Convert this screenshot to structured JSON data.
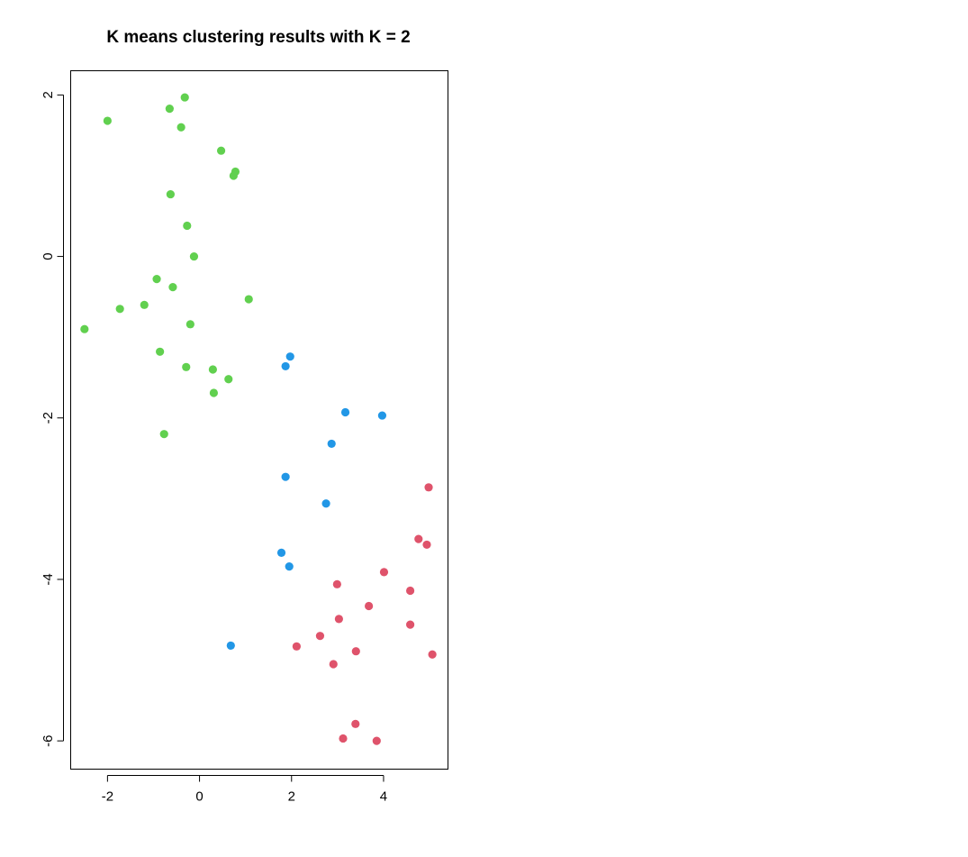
{
  "chart_data": {
    "type": "scatter",
    "title": "K means clustering results with K = 2",
    "xlabel": "",
    "ylabel": "",
    "xlim": [
      -2.8,
      5.4
    ],
    "ylim": [
      -6.35,
      2.3
    ],
    "x_ticks": [
      -2,
      0,
      2,
      4
    ],
    "y_ticks": [
      2,
      0,
      -2,
      -4,
      -6
    ],
    "x_tick_labels": [
      "-2",
      "0",
      "2",
      "4"
    ],
    "y_tick_labels": [
      "2",
      "0",
      "-2",
      "-4",
      "-6"
    ],
    "grid": false,
    "legend": "none",
    "series": [
      {
        "color": "#61D04F",
        "points": [
          [
            -2.0,
            1.68
          ],
          [
            -0.65,
            1.83
          ],
          [
            -0.32,
            1.97
          ],
          [
            -0.4,
            1.6
          ],
          [
            0.47,
            1.31
          ],
          [
            0.78,
            1.05
          ],
          [
            0.74,
            1.0
          ],
          [
            -0.63,
            0.77
          ],
          [
            -0.27,
            0.38
          ],
          [
            -0.12,
            0.0
          ],
          [
            -0.93,
            -0.28
          ],
          [
            -0.58,
            -0.38
          ],
          [
            1.07,
            -0.53
          ],
          [
            -1.2,
            -0.6
          ],
          [
            -1.73,
            -0.65
          ],
          [
            -2.5,
            -0.9
          ],
          [
            -0.2,
            -0.84
          ],
          [
            -0.86,
            -1.18
          ],
          [
            -0.29,
            -1.37
          ],
          [
            0.29,
            -1.4
          ],
          [
            0.63,
            -1.52
          ],
          [
            0.31,
            -1.69
          ],
          [
            -0.77,
            -2.2
          ]
        ]
      },
      {
        "color": "#2297E6",
        "points": [
          [
            1.97,
            -1.24
          ],
          [
            1.87,
            -1.36
          ],
          [
            3.17,
            -1.93
          ],
          [
            3.97,
            -1.97
          ],
          [
            2.87,
            -2.32
          ],
          [
            1.87,
            -2.73
          ],
          [
            2.75,
            -3.06
          ],
          [
            1.78,
            -3.67
          ],
          [
            1.95,
            -3.84
          ],
          [
            0.68,
            -4.82
          ]
        ]
      },
      {
        "color": "#DF536B",
        "points": [
          [
            4.98,
            -2.86
          ],
          [
            4.76,
            -3.5
          ],
          [
            4.94,
            -3.57
          ],
          [
            4.01,
            -3.91
          ],
          [
            2.99,
            -4.06
          ],
          [
            4.58,
            -4.14
          ],
          [
            3.68,
            -4.33
          ],
          [
            3.03,
            -4.49
          ],
          [
            4.58,
            -4.56
          ],
          [
            2.62,
            -4.7
          ],
          [
            2.11,
            -4.83
          ],
          [
            3.4,
            -4.89
          ],
          [
            5.06,
            -4.93
          ],
          [
            2.91,
            -5.05
          ],
          [
            3.39,
            -5.79
          ],
          [
            3.12,
            -5.97
          ],
          [
            3.85,
            -6.0
          ]
        ]
      }
    ]
  }
}
